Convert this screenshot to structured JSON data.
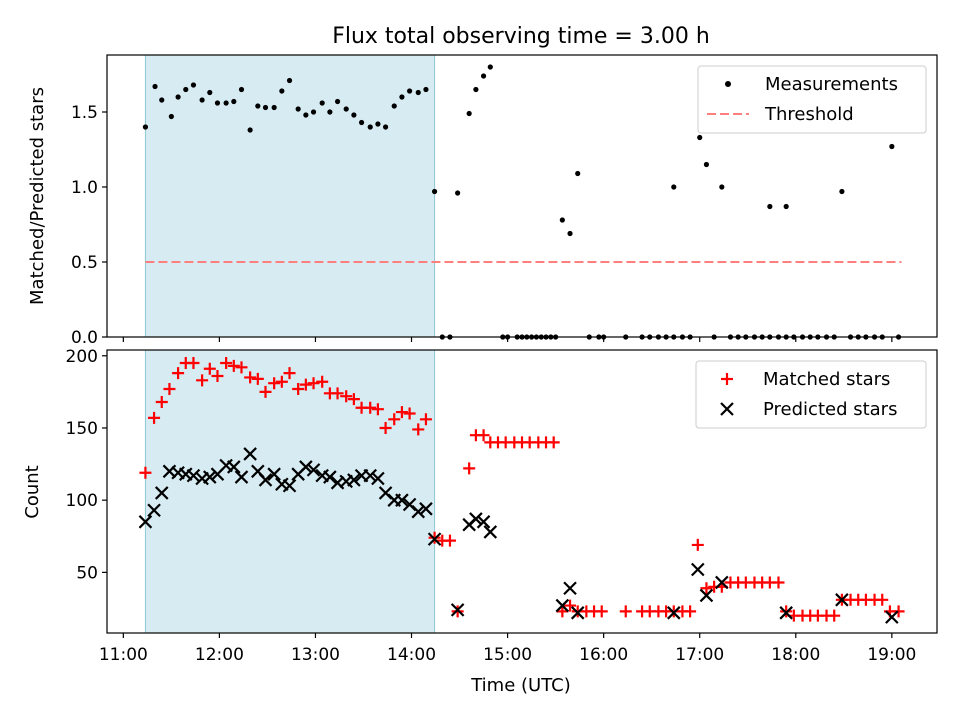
{
  "chart_data": {
    "title": "Flux total observing time = 3.00 h",
    "xlabel": "Time (UTC)",
    "x_unit": "hours UTC",
    "xlim": [
      10.83,
      19.47
    ],
    "xticks": [
      {
        "value": 11,
        "label": "11:00"
      },
      {
        "value": 12,
        "label": "12:00"
      },
      {
        "value": 13,
        "label": "13:00"
      },
      {
        "value": 14,
        "label": "14:00"
      },
      {
        "value": 15,
        "label": "15:00"
      },
      {
        "value": 16,
        "label": "16:00"
      },
      {
        "value": 17,
        "label": "17:00"
      },
      {
        "value": 18,
        "label": "18:00"
      },
      {
        "value": 19,
        "label": "19:00"
      }
    ],
    "shaded_span": {
      "x": [
        11.23,
        14.24
      ],
      "color": "#add8e6",
      "alpha": 0.5
    },
    "panels": [
      {
        "type": "scatter",
        "ylabel": "Matched/Predicted stars",
        "ylim": [
          0,
          1.88
        ],
        "yticks": [
          {
            "value": 0,
            "label": "0.0"
          },
          {
            "value": 0.5,
            "label": "0.5"
          },
          {
            "value": 1.0,
            "label": "1.0"
          },
          {
            "value": 1.5,
            "label": "1.5"
          }
        ],
        "legend": {
          "placement": "upper right"
        },
        "series": [
          {
            "name": "Measurements",
            "kind": "dot",
            "color": "#000000",
            "x": [
              11.23,
              11.33,
              11.4,
              11.5,
              11.57,
              11.65,
              11.73,
              11.82,
              11.9,
              11.98,
              12.07,
              12.15,
              12.23,
              12.32,
              12.4,
              12.48,
              12.57,
              12.65,
              12.73,
              12.82,
              12.9,
              12.98,
              13.07,
              13.15,
              13.23,
              13.32,
              13.4,
              13.48,
              13.57,
              13.65,
              13.73,
              13.82,
              13.9,
              13.98,
              14.07,
              14.15,
              14.24,
              14.48,
              14.6,
              14.67,
              14.75,
              14.82,
              15.57,
              15.65,
              15.73,
              17.73,
              17.9,
              18.48,
              19.0,
              17.0,
              17.07,
              17.23,
              16.73,
              14.32,
              14.4,
              14.95,
              15.0,
              15.1,
              15.15,
              15.2,
              15.25,
              15.3,
              15.35,
              15.4,
              15.45,
              15.5,
              15.85,
              15.95,
              16.0,
              16.23,
              16.4,
              16.48,
              16.57,
              16.65,
              16.73,
              16.82,
              16.9,
              17.15,
              17.32,
              17.4,
              17.48,
              17.57,
              17.65,
              17.73,
              17.82,
              17.9,
              17.98,
              18.07,
              18.15,
              18.23,
              18.32,
              18.4,
              18.57,
              18.65,
              18.73,
              18.82,
              18.9,
              19.07
            ],
            "y": [
              1.4,
              1.67,
              1.58,
              1.47,
              1.6,
              1.65,
              1.68,
              1.58,
              1.63,
              1.56,
              1.56,
              1.57,
              1.65,
              1.38,
              1.54,
              1.53,
              1.53,
              1.64,
              1.71,
              1.52,
              1.48,
              1.5,
              1.56,
              1.5,
              1.57,
              1.52,
              1.48,
              1.43,
              1.4,
              1.42,
              1.4,
              1.54,
              1.6,
              1.64,
              1.63,
              1.65,
              0.97,
              0.96,
              1.49,
              1.65,
              1.74,
              1.8,
              0.78,
              0.69,
              1.09,
              0.87,
              0.87,
              0.97,
              1.27,
              1.33,
              1.15,
              1.0,
              1.0,
              0,
              0,
              0,
              0,
              0,
              0,
              0,
              0,
              0,
              0,
              0,
              0,
              0,
              0,
              0,
              0,
              0,
              0,
              0,
              0,
              0,
              0,
              0,
              0,
              0,
              0,
              0,
              0,
              0,
              0,
              0,
              0,
              0,
              0,
              0,
              0,
              0,
              0,
              0,
              0,
              0,
              0,
              0,
              0,
              0
            ]
          },
          {
            "name": "Threshold",
            "kind": "dashed-line",
            "color": "#ff7f7f",
            "x": [
              11.23,
              19.1
            ],
            "y": [
              0.5,
              0.5
            ]
          }
        ]
      },
      {
        "type": "scatter",
        "ylabel": "Count",
        "ylim": [
          8,
          204
        ],
        "yticks": [
          {
            "value": 50,
            "label": "50"
          },
          {
            "value": 100,
            "label": "100"
          },
          {
            "value": 150,
            "label": "150"
          },
          {
            "value": 200,
            "label": "200"
          }
        ],
        "legend": {
          "placement": "upper right"
        },
        "series": [
          {
            "name": "Matched stars",
            "kind": "plus",
            "color": "#ff0000",
            "x": [
              11.23,
              11.32,
              11.4,
              11.48,
              11.57,
              11.65,
              11.73,
              11.82,
              11.9,
              11.98,
              12.07,
              12.15,
              12.23,
              12.32,
              12.4,
              12.48,
              12.57,
              12.65,
              12.73,
              12.82,
              12.9,
              12.98,
              13.07,
              13.15,
              13.23,
              13.32,
              13.4,
              13.48,
              13.57,
              13.65,
              13.73,
              13.82,
              13.9,
              13.98,
              14.07,
              14.15,
              14.24,
              14.32,
              14.4,
              14.48,
              14.6,
              14.67,
              14.75,
              14.82,
              14.9,
              14.98,
              15.07,
              15.15,
              15.23,
              15.32,
              15.4,
              15.48,
              15.57,
              15.65,
              15.73,
              15.82,
              15.9,
              15.98,
              16.23,
              16.4,
              16.48,
              16.57,
              16.65,
              16.73,
              16.82,
              16.9,
              16.98,
              17.07,
              17.15,
              17.23,
              17.32,
              17.4,
              17.48,
              17.57,
              17.65,
              17.73,
              17.82,
              17.9,
              17.98,
              18.07,
              18.15,
              18.23,
              18.32,
              18.4,
              18.48,
              18.57,
              18.65,
              18.73,
              18.82,
              18.9,
              18.98,
              19.07
            ],
            "y": [
              119,
              157,
              168,
              177,
              188,
              195,
              195,
              183,
              191,
              186,
              195,
              193,
              192,
              185,
              184,
              175,
              181,
              182,
              188,
              177,
              180,
              181,
              182,
              174,
              174,
              172,
              170,
              164,
              164,
              163,
              150,
              156,
              161,
              160,
              149,
              156,
              74,
              72,
              72,
              23,
              122,
              145,
              145,
              140,
              140,
              140,
              140,
              140,
              140,
              140,
              140,
              140,
              23,
              27,
              23,
              23,
              23,
              23,
              23,
              23,
              23,
              23,
              23,
              23,
              23,
              23,
              69,
              39,
              40,
              40,
              43,
              43,
              43,
              43,
              43,
              43,
              43,
              23,
              20,
              20,
              20,
              20,
              20,
              20,
              31,
              31,
              31,
              31,
              31,
              31,
              23,
              23
            ]
          },
          {
            "name": "Predicted stars",
            "kind": "x",
            "color": "#000000",
            "x": [
              11.23,
              11.32,
              11.4,
              11.48,
              11.57,
              11.65,
              11.73,
              11.82,
              11.9,
              11.98,
              12.07,
              12.15,
              12.23,
              12.32,
              12.4,
              12.48,
              12.57,
              12.65,
              12.73,
              12.82,
              12.9,
              12.98,
              13.07,
              13.15,
              13.23,
              13.32,
              13.4,
              13.48,
              13.57,
              13.65,
              13.73,
              13.82,
              13.9,
              13.98,
              14.07,
              14.15,
              14.24,
              14.48,
              14.6,
              14.67,
              14.75,
              14.82,
              15.57,
              15.65,
              15.73,
              16.73,
              16.98,
              17.07,
              17.23,
              17.9,
              18.48,
              19.0
            ],
            "y": [
              85,
              93,
              105,
              120,
              119,
              118,
              117,
              115,
              116,
              118,
              124,
              123,
              116,
              132,
              120,
              114,
              118,
              111,
              110,
              118,
              123,
              121,
              117,
              116,
              112,
              113,
              114,
              117,
              117,
              115,
              105,
              100,
              100,
              97,
              92,
              94,
              73,
              24,
              83,
              87,
              85,
              78,
              27,
              39,
              22,
              22,
              52,
              34,
              43,
              22,
              31,
              19
            ]
          }
        ]
      }
    ]
  }
}
